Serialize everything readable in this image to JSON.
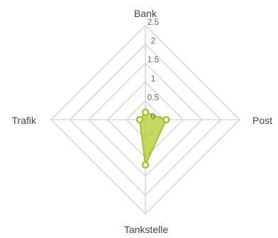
{
  "chart_data": {
    "type": "radar",
    "axes": [
      "Bank",
      "Post",
      "Tankstelle",
      "Trafik"
    ],
    "series": [
      {
        "values": [
          0.2,
          0.55,
          1.2,
          0.15
        ]
      }
    ],
    "rlim": [
      0,
      2.5
    ],
    "ticks": [
      "0",
      "0.5",
      "1",
      "1.5",
      "2",
      "2.5"
    ],
    "grid": true,
    "legend": "none"
  },
  "colors": {
    "series_fill": "#b5cc2e",
    "series_stroke": "#a4c22a",
    "point_fill": "#ffffff",
    "grid": "#d9d9d9"
  }
}
